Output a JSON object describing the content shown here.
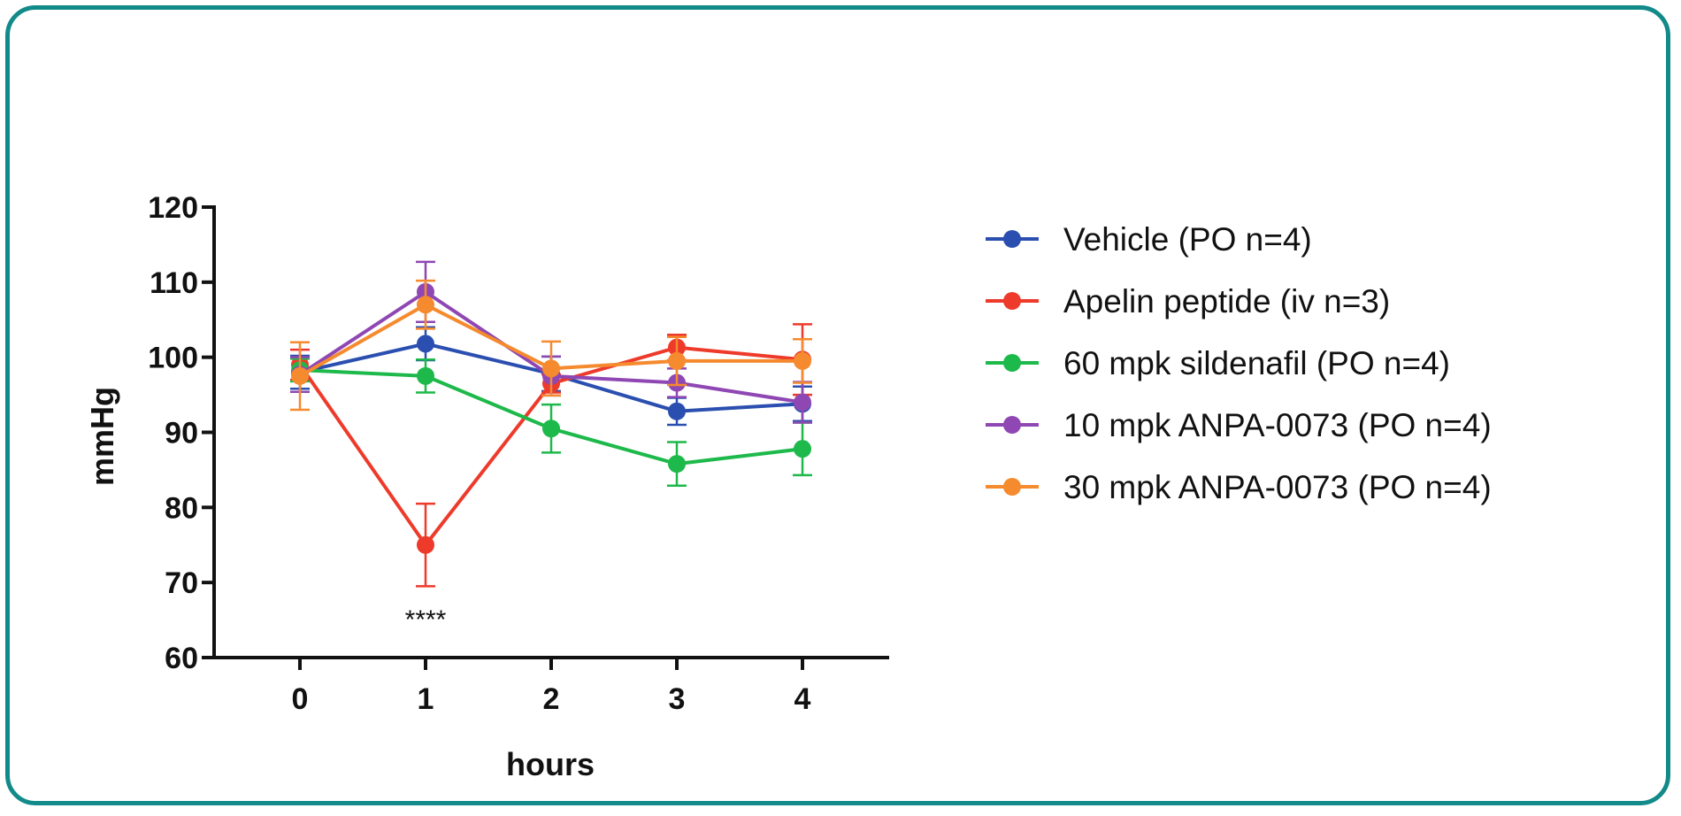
{
  "chart_data": {
    "type": "line",
    "xlabel": "hours",
    "ylabel": "mmHg",
    "x": [
      0,
      1,
      2,
      3,
      4
    ],
    "xticks": [
      "0",
      "1",
      "2",
      "3",
      "4"
    ],
    "ylim": [
      60,
      120
    ],
    "yticks": [
      "60",
      "70",
      "80",
      "90",
      "100",
      "110",
      "120"
    ],
    "grid": false,
    "legend_position": "right",
    "annotation": {
      "text": "****",
      "x": 1
    },
    "series": [
      {
        "name": "Vehicle (PO n=4)",
        "color": "#2b4fb0",
        "values": [
          98.0,
          101.8,
          97.8,
          92.8,
          93.8
        ],
        "errors": [
          2.2,
          2.2,
          2.3,
          1.8,
          2.3
        ]
      },
      {
        "name": "Apelin peptide (iv n=3)",
        "color": "#ee3a2b",
        "values": [
          99.0,
          75.0,
          96.5,
          101.3,
          99.7
        ],
        "errors": [
          2.0,
          5.5,
          1.2,
          1.7,
          4.7
        ]
      },
      {
        "name": "60 mpk sildenafil (PO n=4)",
        "color": "#1db94a",
        "values": [
          98.3,
          97.5,
          90.5,
          85.8,
          87.8
        ],
        "errors": [
          1.5,
          2.2,
          3.2,
          2.9,
          3.5
        ]
      },
      {
        "name": "10 mpk ANPA-0073 (PO n=4)",
        "color": "#8f47b3",
        "values": [
          97.7,
          108.7,
          97.5,
          96.6,
          94.0
        ],
        "errors": [
          2.3,
          4.0,
          2.6,
          1.9,
          2.7
        ]
      },
      {
        "name": "30 mpk ANPA-0073 (PO n=4)",
        "color": "#f58a2e",
        "values": [
          97.5,
          107.0,
          98.5,
          99.5,
          99.5
        ],
        "errors": [
          4.5,
          3.2,
          3.6,
          3.2,
          2.9
        ]
      }
    ]
  }
}
